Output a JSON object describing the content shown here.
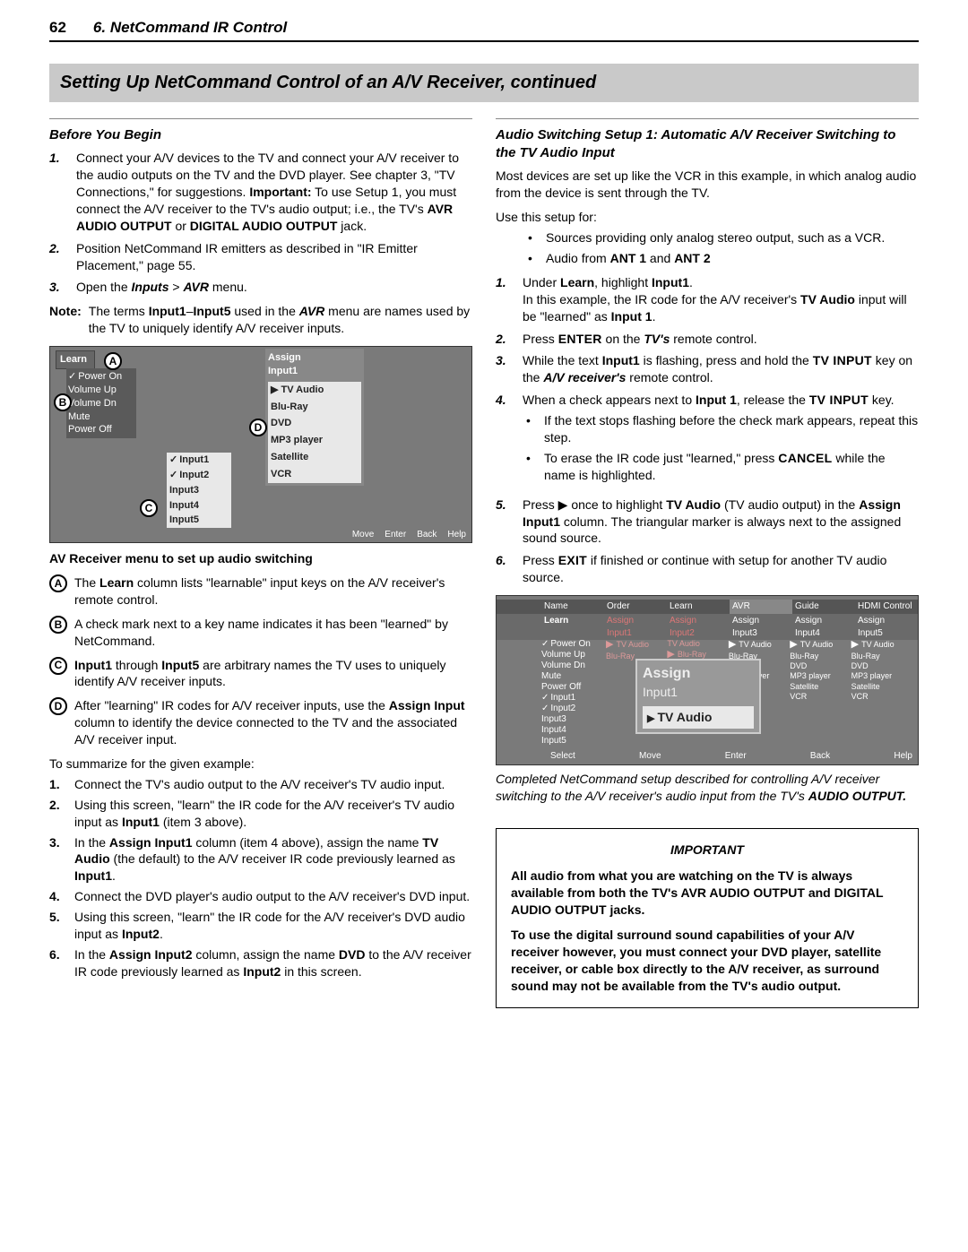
{
  "header": {
    "page_number": "62",
    "chapter": "6.  NetCommand IR Control"
  },
  "section_title": "Setting Up NetCommand Control of an A/V Receiver, continued",
  "left": {
    "before_heading": "Before You Begin",
    "steps": [
      {
        "n": "1.",
        "html": "Connect your A/V devices to the TV and connect your A/V receiver to the audio outputs on the TV and the DVD player.  See chapter 3, \"TV Connections,\" for suggestions.  <b>Important:</b>  To use Setup 1, you must connect the A/V receiver to the TV's audio output; i.e., the TV's <b>AVR AUDIO OUTPUT</b> or <b>DIGITAL AUDIO OUTPUT</b> jack."
      },
      {
        "n": "2.",
        "html": "Position NetCommand IR emitters as described in \"IR Emitter Placement,\" page 55."
      },
      {
        "n": "3.",
        "html": "Open the <b><i>Inputs</i></b> > <b><i>AVR</i></b> menu."
      }
    ],
    "note_label": "Note:",
    "note_html": "The terms <b>Input1</b>–<b>Input5</b> used in the <b><i>AVR</i></b> menu are names used by the TV to uniquely identify A/V receiver inputs.",
    "ss1": {
      "labels": {
        "A": "A",
        "B": "B",
        "C": "C",
        "D": "D"
      },
      "learn_items": [
        "Power On",
        "Volume Up",
        "Volume Dn",
        "Mute",
        "Power Off"
      ],
      "assign_title": "Assign",
      "assign_sub": "Input1",
      "assign_items": [
        "TV Audio",
        "Blu-Ray",
        "DVD",
        "MP3 player",
        "Satellite",
        "VCR"
      ],
      "input_col": [
        "Input1",
        "Input2",
        "Input3",
        "Input4",
        "Input5"
      ],
      "footer": [
        "Move",
        "Enter",
        "Back",
        "Help"
      ],
      "top_learn": "Learn"
    },
    "ss1_caption": "AV Receiver menu to set up audio switching",
    "letters": [
      {
        "l": "A",
        "html": "The <b>Learn</b> column lists \"learnable\" input keys on the A/V receiver's remote control."
      },
      {
        "l": "B",
        "html": "A check mark next to a key name indicates it has been \"learned\" by NetCommand."
      },
      {
        "l": "C",
        "html": "<b>Input1</b> through <b>Input5</b> are arbitrary names the TV uses to uniquely identify A/V receiver inputs."
      },
      {
        "l": "D",
        "html": "After \"learning\" IR codes for A/V receiver inputs, use the <b>Assign Input</b> column to identify the device connected to the TV and the associated A/V receiver input."
      }
    ],
    "summary_intro": "To summarize for the given example:",
    "summary": [
      {
        "n": "1.",
        "html": "Connect the TV's audio output to the A/V receiver's TV audio input."
      },
      {
        "n": "2.",
        "html": "Using this screen, \"learn\" the IR code for the A/V receiver's TV audio input as <b>Input1</b> (item 3 above)."
      },
      {
        "n": "3.",
        "html": "In the <b>Assign Input1</b> column (item 4 above), assign the name <b>TV Audio</b> (the default) to the A/V receiver IR code previously learned as <b>Input1</b>."
      },
      {
        "n": "4.",
        "html": "Connect the DVD player's audio output to the A/V receiver's DVD input."
      },
      {
        "n": "5.",
        "html": "Using this screen, \"learn\" the IR code for the A/V receiver's DVD audio input as <b>Input2</b>."
      },
      {
        "n": "6.",
        "html": "In the <b>Assign Input2</b> column, assign the name <b>DVD</b> to the A/V receiver IR code previously learned as <b>Input2</b> in this screen."
      }
    ]
  },
  "right": {
    "heading": "Audio Switching Setup 1:  Automatic A/V Receiver Switching to the TV Audio Input",
    "intro": "Most devices are set up like the VCR in this example, in which analog audio from the device is sent through the TV.",
    "use_for_label": "Use this setup for:",
    "use_for": [
      "Sources providing only analog stereo output, such as a VCR.",
      "Audio from <b>ANT 1</b> and <b>ANT 2</b>"
    ],
    "steps": [
      {
        "n": "1.",
        "html": "Under <b>Learn</b>, highlight <b>Input1</b>.<br>In this example, the IR code for the A/V receiver's <b>TV Audio</b> input will be \"learned\" as <b>Input 1</b>."
      },
      {
        "n": "2.",
        "html": "Press <span class='sc'>ENTER</span> on the <b><i>TV's</i></b> remote control."
      },
      {
        "n": "3.",
        "html": "While the text <b>Input1</b> is flashing, press and hold the <span class='sc'>TV INPUT</span> key on the <b><i>A/V receiver's</i></b> remote control."
      },
      {
        "n": "4.",
        "html": "When a check appears next to <b>Input 1</b>, release the <span class='sc'>TV INPUT</span> key.",
        "sub": [
          "If the text stops flashing before the check mark appears, repeat this step.",
          "To erase the IR code just \"learned,\" press <span class='sc'>CANCEL</span> while the name is highlighted."
        ]
      },
      {
        "n": "5.",
        "html": "Press ▶ once to highlight <b>TV Audio</b> (TV audio output) in the <b>Assign Input1</b> column.  The triangular marker is always next to the assigned sound source."
      },
      {
        "n": "6.",
        "html": "Press <span class='sc'>EXIT</span> if finished or continue with setup for another TV audio source."
      }
    ],
    "ss2": {
      "top_row": [
        "Name",
        "Order",
        "Learn",
        "AVR",
        "Guide",
        "HDMI Control"
      ],
      "second_row": [
        "Learn",
        "Assign Input1",
        "Assign Input2",
        "Assign Input3",
        "Assign Input4",
        "Assign Input5"
      ],
      "left_items": [
        "Power On",
        "Volume Up",
        "Volume Dn",
        "Mute",
        "Power Off",
        "Input1",
        "Input2",
        "Input3",
        "Input4",
        "Input5"
      ],
      "cols": [
        "TV Audio",
        "Blu-Ray",
        "DVD",
        "MP3 player",
        "Satellite",
        "VCR"
      ],
      "popup_title": "Assign",
      "popup_sub": "Input1",
      "popup_val": "TV Audio",
      "footer": [
        "Select",
        "Move",
        "Enter",
        "Back",
        "Help"
      ]
    },
    "ss2_caption": "Completed NetCommand setup described for controlling A/V receiver switching to the A/V receiver's audio input from the TV's <b>AUDIO OUTPUT.</b>",
    "important": {
      "title": "IMPORTANT",
      "p1": "All audio from what you are watching on the TV is always available from both the TV's AVR AUDIO OUTPUT and DIGITAL AUDIO OUTPUT jacks.",
      "p2": "To use the digital surround sound capabilities of your A/V receiver however, you must connect your DVD player, satellite receiver, or cable box directly to the A/V receiver, as surround sound may not be available from the TV's audio output."
    }
  }
}
